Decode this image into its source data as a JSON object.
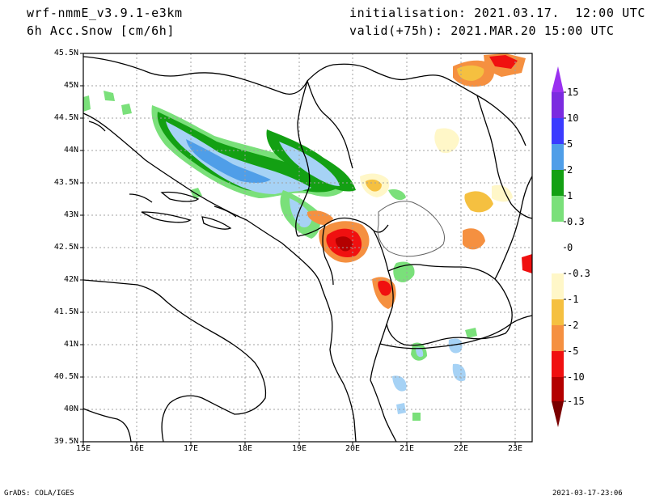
{
  "header": {
    "model": "wrf-nmmE_v3.9.1-e3km",
    "field": "6h Acc.Snow [cm/6h]",
    "init": "initialisation: 2021.03.17.  12:00 UTC",
    "valid": "valid(+75h): 2021.MAR.20 15:00 UTC"
  },
  "footer": {
    "credit": "GrADS: COLA/IGES",
    "timestamp": "2021-03-17-23:06"
  },
  "map": {
    "lat_labels": [
      "45.5N",
      "45N",
      "44.5N",
      "44N",
      "43.5N",
      "43N",
      "42.5N",
      "42N",
      "41.5N",
      "41N",
      "40.5N",
      "40N",
      "39.5N"
    ],
    "lon_labels": [
      "15E",
      "16E",
      "17E",
      "18E",
      "19E",
      "20E",
      "21E",
      "22E",
      "23E"
    ]
  },
  "colorbar": {
    "labels": [
      "15",
      "10",
      "5",
      "2",
      "1",
      "0.3",
      "0",
      "-0.3",
      "-1",
      "-2",
      "-5",
      "-10",
      "-15"
    ],
    "colors": [
      "#8a2be2",
      "#3b3bff",
      "#4f9ee8",
      "#a6d2f5",
      "#13a013",
      "#7ae07a",
      "#ffffff",
      "#fff7c8",
      "#f5c040",
      "#f59040",
      "#f01010",
      "#b40000"
    ],
    "top_arrow_color": "#9a30f0",
    "bottom_arrow_color": "#7a0000"
  },
  "colors": {
    "snow_light_blue": "#a6d2f5",
    "snow_blue": "#4f9ee8",
    "snow_green": "#13a013",
    "snow_light_green": "#7ae07a",
    "melt_pale": "#fff7c8",
    "melt_yellow": "#f5c040",
    "melt_orange": "#f59040",
    "melt_red": "#f01010",
    "melt_dark_red": "#b40000"
  }
}
